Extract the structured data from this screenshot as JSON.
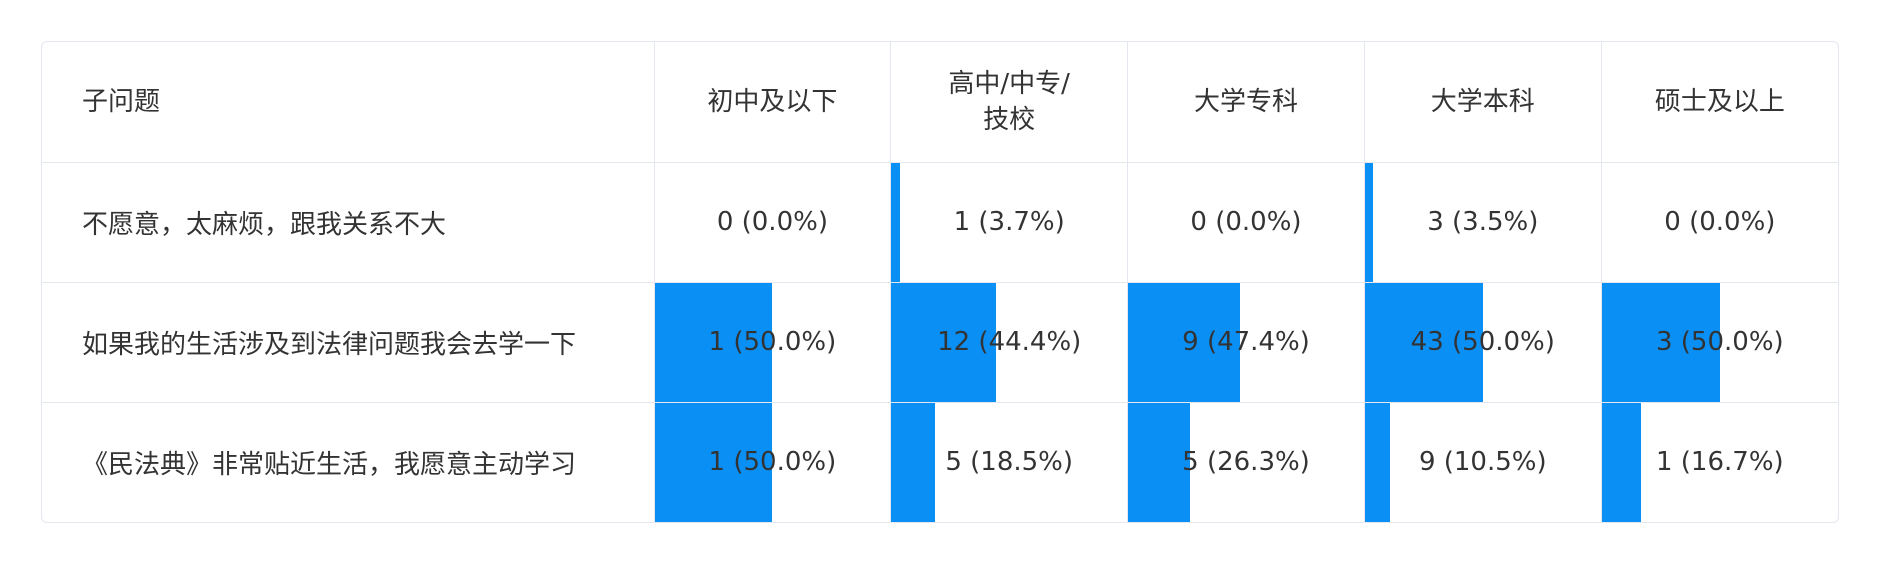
{
  "chart_data": {
    "type": "table",
    "columns": [
      "子问题",
      "初中及以下",
      "高中/中专/技校",
      "大学专科",
      "大学本科",
      "硕士及以上"
    ],
    "rows": [
      {
        "label": "不愿意，太麻烦，跟我关系不大",
        "cells": [
          {
            "text": "0 (0.0%)",
            "pct": 0.0
          },
          {
            "text": "1 (3.7%)",
            "pct": 3.7
          },
          {
            "text": "0 (0.0%)",
            "pct": 0.0
          },
          {
            "text": "3 (3.5%)",
            "pct": 3.5
          },
          {
            "text": "0 (0.0%)",
            "pct": 0.0
          }
        ]
      },
      {
        "label": "如果我的生活涉及到法律问题我会去学一下",
        "cells": [
          {
            "text": "1 (50.0%)",
            "pct": 50.0
          },
          {
            "text": "12 (44.4%)",
            "pct": 44.4
          },
          {
            "text": "9 (47.4%)",
            "pct": 47.4
          },
          {
            "text": "43 (50.0%)",
            "pct": 50.0
          },
          {
            "text": "3 (50.0%)",
            "pct": 50.0
          }
        ]
      },
      {
        "label": "《民法典》非常贴近生活，我愿意主动学习",
        "cells": [
          {
            "text": "1 (50.0%)",
            "pct": 50.0
          },
          {
            "text": "5 (18.5%)",
            "pct": 18.5
          },
          {
            "text": "5 (26.3%)",
            "pct": 26.3
          },
          {
            "text": "9 (10.5%)",
            "pct": 10.5
          },
          {
            "text": "1 (16.7%)",
            "pct": 16.7
          }
        ]
      }
    ],
    "bar_color": "#0a8ff5"
  }
}
